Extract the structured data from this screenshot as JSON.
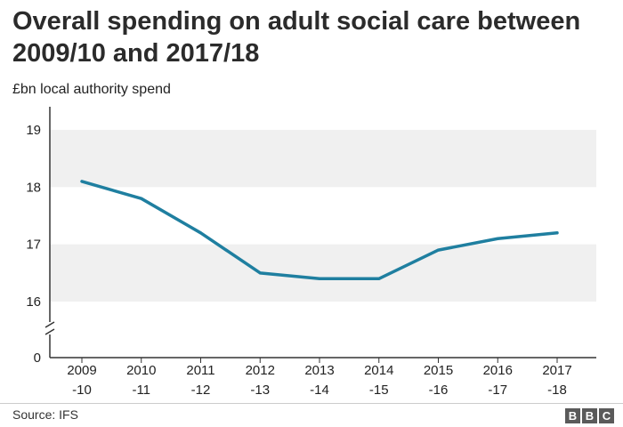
{
  "chart_data": {
    "type": "line",
    "title": "Overall spending on adult social care between 2009/10 and 2017/18",
    "ylabel": "£bn local authority spend",
    "xlabel": "",
    "categories": [
      [
        "2009",
        "-10"
      ],
      [
        "2010",
        "-11"
      ],
      [
        "2011",
        "-12"
      ],
      [
        "2012",
        "-13"
      ],
      [
        "2013",
        "-14"
      ],
      [
        "2014",
        "-15"
      ],
      [
        "2015",
        "-16"
      ],
      [
        "2016",
        "-17"
      ],
      [
        "2017",
        "-18"
      ]
    ],
    "series": [
      {
        "name": "Local authority spend",
        "values": [
          18.1,
          17.8,
          17.2,
          16.5,
          16.4,
          16.4,
          16.9,
          17.1,
          17.2
        ]
      }
    ],
    "yticks": [
      16,
      17,
      18,
      19
    ],
    "ylim": [
      16,
      19
    ],
    "zero_label": "0",
    "axis_break": true,
    "line_color": "#1f7fa0",
    "band_color": "#f0f0f0",
    "grid": true
  },
  "footer": {
    "source": "Source: IFS",
    "logo_letters": [
      "B",
      "B",
      "C"
    ]
  }
}
